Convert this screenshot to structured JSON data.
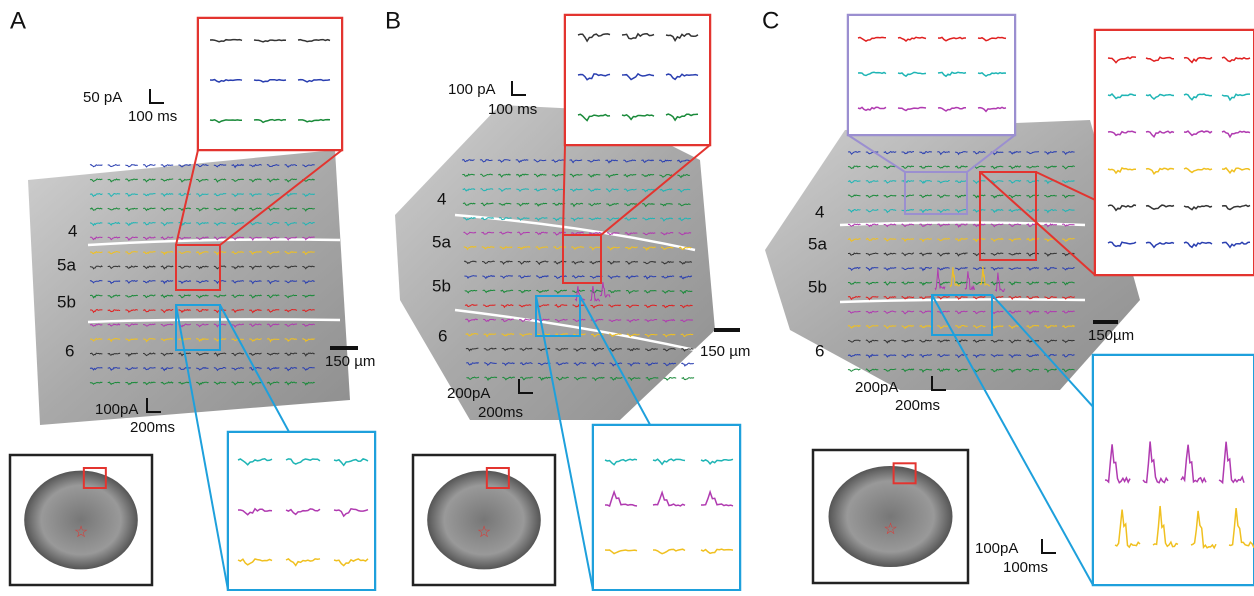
{
  "panels": [
    {
      "label": "A",
      "scale_top": [
        "50 pA",
        "100 ms"
      ],
      "layers": [
        "4",
        "5a",
        "5b",
        "6"
      ],
      "scale_bar": "150 µm",
      "scale_bottom": [
        "100pA",
        "200ms"
      ]
    },
    {
      "label": "B",
      "scale_top": [
        "100 pA",
        "100 ms"
      ],
      "layers": [
        "4",
        "5a",
        "5b",
        "6"
      ],
      "scale_bar": "150 µm",
      "scale_bottom": [
        "200pA",
        "200ms"
      ]
    },
    {
      "label": "C",
      "scale_top": [
        "100pA",
        "100ms"
      ],
      "layers": [
        "4",
        "5a",
        "5b",
        "6"
      ],
      "scale_bar": "150µm",
      "scale_bottom": [
        "200pA",
        "200ms"
      ]
    }
  ]
}
